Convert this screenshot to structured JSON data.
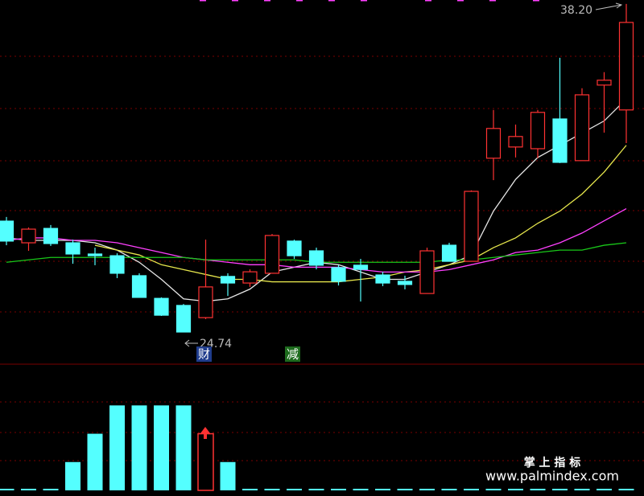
{
  "chart_data": {
    "type": "candlestick",
    "open": [
      29.29,
      28.4,
      28.99,
      28.4,
      27.94,
      27.87,
      27.05,
      26.12,
      25.83,
      25.33,
      27.02,
      26.75,
      27.15,
      28.47,
      28.07,
      27.38,
      27.48,
      27.08,
      26.82,
      26.32,
      28.3,
      27.64,
      31.87,
      32.33,
      32.26,
      33.48,
      31.77,
      34.87,
      33.85
    ],
    "high": [
      29.46,
      29.03,
      29.13,
      28.53,
      28.2,
      27.97,
      27.15,
      26.16,
      25.89,
      28.53,
      27.15,
      27.31,
      28.76,
      28.53,
      28.2,
      27.48,
      27.74,
      27.21,
      27.05,
      28.2,
      28.4,
      30.55,
      33.85,
      33.25,
      33.85,
      35.99,
      34.74,
      35.4,
      38.2
    ],
    "low": [
      28.3,
      28.07,
      28.27,
      27.54,
      27.48,
      26.95,
      26.16,
      25.4,
      24.74,
      25.27,
      26.22,
      26.59,
      27.15,
      27.74,
      27.31,
      26.65,
      25.99,
      26.62,
      26.49,
      26.32,
      27.64,
      27.64,
      30.97,
      31.9,
      31.87,
      31.67,
      31.77,
      32.92,
      32.49
    ],
    "close": [
      28.47,
      28.96,
      28.37,
      27.94,
      27.87,
      27.15,
      26.16,
      25.43,
      24.74,
      26.59,
      26.75,
      27.21,
      28.7,
      27.87,
      27.48,
      26.82,
      27.31,
      26.75,
      26.69,
      28.07,
      27.64,
      30.51,
      33.09,
      32.76,
      33.75,
      31.7,
      34.47,
      35.07,
      37.44
    ],
    "up_color": "#ff3232",
    "down_color": "#54ffff",
    "ylim": [
      23.52,
      38.36
    ],
    "lines": [
      {
        "color": "#e6e6e6",
        "values": [
          28.6,
          28.5,
          28.5,
          28.5,
          28.4,
          28.1,
          27.6,
          26.9,
          26.1,
          26.0,
          26.1,
          26.5,
          27.2,
          27.4,
          27.6,
          27.5,
          27.2,
          26.9,
          26.9,
          27.2,
          27.5,
          27.9,
          29.7,
          31.0,
          31.9,
          32.4,
          32.9,
          33.4,
          34.3
        ]
      },
      {
        "color": "#e6e64c",
        "values": [
          null,
          null,
          null,
          null,
          28.3,
          28.1,
          27.9,
          27.5,
          27.3,
          27.1,
          26.9,
          26.9,
          26.8,
          26.8,
          26.8,
          26.8,
          26.9,
          27.0,
          27.2,
          27.3,
          27.5,
          27.7,
          28.2,
          28.6,
          29.2,
          29.7,
          30.4,
          31.3,
          32.4
        ]
      },
      {
        "color": "#ff40ff",
        "values": [
          28.5,
          28.6,
          28.6,
          28.5,
          28.5,
          28.4,
          28.2,
          28.0,
          27.8,
          27.7,
          27.6,
          27.5,
          27.5,
          27.4,
          27.4,
          27.4,
          27.3,
          27.2,
          27.2,
          27.2,
          27.3,
          27.5,
          27.7,
          28.0,
          28.1,
          28.4,
          28.8,
          29.3,
          29.8
        ]
      },
      {
        "color": "#19c819",
        "values": [
          27.6,
          27.7,
          27.8,
          27.8,
          27.8,
          27.8,
          27.8,
          27.8,
          27.8,
          27.7,
          27.7,
          27.7,
          27.7,
          27.7,
          27.6,
          27.6,
          27.6,
          27.6,
          27.6,
          27.6,
          27.7,
          27.7,
          27.8,
          27.9,
          28.0,
          28.1,
          28.1,
          28.3,
          28.4
        ]
      }
    ],
    "high_label": "38.20",
    "low_label": "24.74",
    "signals": [
      "财",
      "减"
    ],
    "indicator": {
      "type": "bar",
      "ylim": [
        0,
        4.4
      ],
      "series": [
        {
          "color": "#54ffff",
          "values": [
            0,
            0,
            0,
            1,
            2,
            3,
            3,
            3,
            3,
            null,
            1,
            0,
            0,
            0,
            0,
            0,
            0,
            0,
            0,
            0,
            0,
            0,
            0,
            0,
            0,
            0,
            0,
            0,
            0
          ]
        },
        {
          "color": "#ff3232",
          "values": [
            null,
            null,
            null,
            null,
            null,
            null,
            null,
            null,
            null,
            2,
            null,
            null,
            null,
            null,
            null,
            null,
            null,
            null,
            null,
            null,
            null,
            null,
            null,
            null,
            null,
            null,
            null,
            null,
            null
          ]
        }
      ]
    }
  },
  "watermark": {
    "title": "掌 上 指 标",
    "url": "www.palmindex.com"
  }
}
